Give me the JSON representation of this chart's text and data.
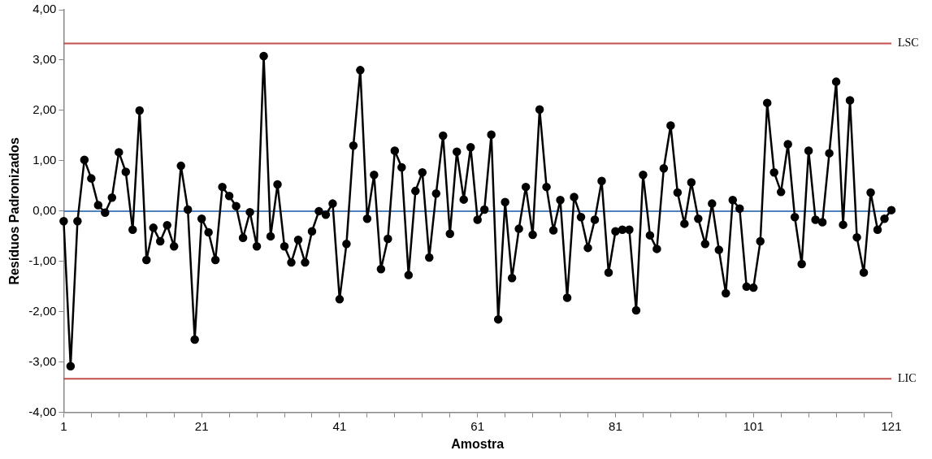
{
  "chart_data": {
    "type": "line",
    "xlabel": "Amostra",
    "ylabel": "Resíduos Padronizados",
    "x": [
      1,
      2,
      3,
      4,
      5,
      6,
      7,
      8,
      9,
      10,
      11,
      12,
      13,
      14,
      15,
      16,
      17,
      18,
      19,
      20,
      21,
      22,
      23,
      24,
      25,
      26,
      27,
      28,
      29,
      30,
      31,
      32,
      33,
      34,
      35,
      36,
      37,
      38,
      39,
      40,
      41,
      42,
      43,
      44,
      45,
      46,
      47,
      48,
      49,
      50,
      51,
      52,
      53,
      54,
      55,
      56,
      57,
      58,
      59,
      60,
      61,
      62,
      63,
      64,
      65,
      66,
      67,
      68,
      69,
      70,
      71,
      72,
      73,
      74,
      75,
      76,
      77,
      78,
      79,
      80,
      81,
      82,
      83,
      84,
      85,
      86,
      87,
      88,
      89,
      90,
      91,
      92,
      93,
      94,
      95,
      96,
      97,
      98,
      99,
      100,
      101,
      102,
      103,
      104,
      105,
      106,
      107,
      108,
      109,
      110,
      111,
      112,
      113,
      114,
      115,
      116,
      117,
      118,
      119,
      120,
      121
    ],
    "series": [
      {
        "color": "#000000",
        "values": [
          -0.2,
          -3.08,
          -0.2,
          1.02,
          0.65,
          0.12,
          -0.03,
          0.27,
          1.17,
          0.78,
          -0.37,
          2.0,
          -0.97,
          -0.33,
          -0.6,
          -0.28,
          -0.7,
          0.9,
          0.03,
          -2.55,
          -0.15,
          -0.42,
          -0.97,
          0.48,
          0.3,
          0.1,
          -0.53,
          -0.02,
          -0.7,
          3.08,
          -0.5,
          0.53,
          -0.7,
          -1.02,
          -0.57,
          -1.02,
          -0.4,
          0.0,
          -0.07,
          0.15,
          -1.75,
          -0.65,
          1.3,
          2.8,
          -0.15,
          0.72,
          -1.15,
          -0.55,
          1.2,
          0.87,
          -1.27,
          0.4,
          0.77,
          -0.92,
          0.35,
          1.5,
          -0.45,
          1.18,
          0.23,
          1.27,
          -0.17,
          0.03,
          1.52,
          -2.15,
          0.18,
          -1.33,
          -0.35,
          0.48,
          -0.47,
          2.02,
          0.48,
          -0.38,
          0.22,
          -1.72,
          0.28,
          -0.12,
          -0.73,
          -0.17,
          0.6,
          -1.22,
          -0.4,
          -0.37,
          -0.37,
          -1.97,
          0.72,
          -0.48,
          -0.75,
          0.85,
          1.7,
          0.37,
          -0.25,
          0.57,
          -0.15,
          -0.65,
          0.15,
          -0.77,
          -1.63,
          0.22,
          0.05,
          -1.5,
          -1.52,
          -0.6,
          2.15,
          0.77,
          0.38,
          1.33,
          -0.12,
          -1.05,
          1.2,
          -0.17,
          -0.22,
          1.15,
          2.57,
          -0.27,
          2.2,
          -0.52,
          -1.22,
          0.37,
          -0.37,
          -0.15,
          0.02
        ]
      }
    ],
    "xlim": [
      1,
      121
    ],
    "xticks": [
      1,
      {
        "value": 5,
        "label": null
      },
      {
        "value": 9,
        "label": null
      },
      {
        "value": 13,
        "label": null
      },
      {
        "value": 17,
        "label": null
      },
      21,
      {
        "value": 25,
        "label": null
      },
      {
        "value": 29,
        "label": null
      },
      {
        "value": 33,
        "label": null
      },
      {
        "value": 37,
        "label": null
      },
      41,
      {
        "value": 45,
        "label": null
      },
      {
        "value": 49,
        "label": null
      },
      {
        "value": 53,
        "label": null
      },
      {
        "value": 57,
        "label": null
      },
      61,
      {
        "value": 65,
        "label": null
      },
      {
        "value": 69,
        "label": null
      },
      {
        "value": 73,
        "label": null
      },
      {
        "value": 77,
        "label": null
      },
      81,
      {
        "value": 85,
        "label": null
      },
      {
        "value": 89,
        "label": null
      },
      {
        "value": 93,
        "label": null
      },
      {
        "value": 97,
        "label": null
      },
      101,
      {
        "value": 105,
        "label": null
      },
      {
        "value": 109,
        "label": null
      },
      {
        "value": 113,
        "label": null
      },
      {
        "value": 117,
        "label": null
      },
      121
    ],
    "ylim": [
      -4,
      4
    ],
    "yticks": [
      {
        "value": -4,
        "label": "-4,00"
      },
      {
        "value": -3,
        "label": "-3,00"
      },
      {
        "value": -2,
        "label": "-2,00"
      },
      {
        "value": -1,
        "label": "-1,00"
      },
      {
        "value": 0,
        "label": "0,00"
      },
      {
        "value": 1,
        "label": "1,00"
      },
      {
        "value": 2,
        "label": "2,00"
      },
      {
        "value": 3,
        "label": "3,00"
      },
      {
        "value": 4,
        "label": "4,00"
      }
    ],
    "ref_lines": [
      {
        "axis": "y",
        "value": 3.33,
        "label": "LSC",
        "color": "#c0504d"
      },
      {
        "axis": "y",
        "value": 0,
        "color": "#4f81bd"
      },
      {
        "axis": "y",
        "value": -3.33,
        "label": "LIC",
        "color": "#c0504d"
      }
    ],
    "grid": false,
    "legend": false,
    "marker": "circle",
    "line_style": "solid"
  }
}
